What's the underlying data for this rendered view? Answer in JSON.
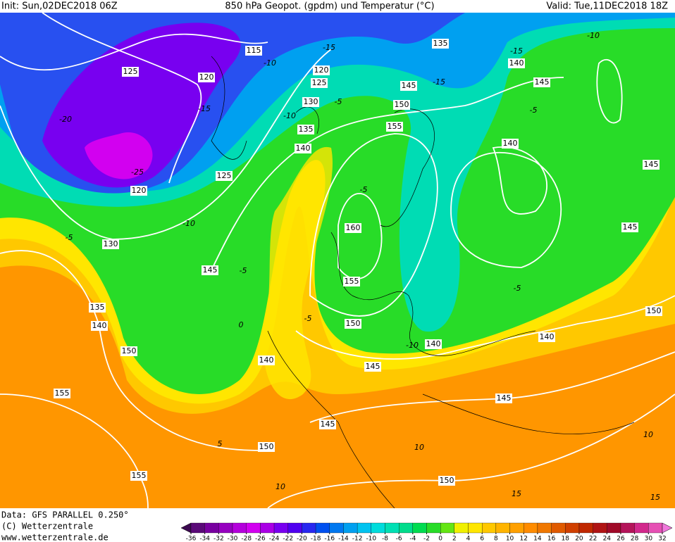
{
  "header": {
    "init": "Init: Sun,02DEC2018 06Z",
    "title": "850 hPa Geopot. (gpdm) und Temperatur (°C)",
    "valid": "Valid: Tue,11DEC2018 18Z"
  },
  "footer": {
    "data": "Data: GFS PARALLEL 0.250°",
    "copyright": "(C) Wetterzentrale",
    "url": "www.wetterzentrale.de"
  },
  "geopotential_labels": [
    "115",
    "120",
    "125",
    "120",
    "125",
    "130",
    "135",
    "140",
    "125",
    "120",
    "130",
    "135",
    "140",
    "150",
    "155",
    "155",
    "150",
    "145",
    "140",
    "145",
    "160",
    "155",
    "150",
    "145",
    "140",
    "150",
    "155",
    "145",
    "135",
    "140",
    "145",
    "140",
    "145",
    "145",
    "150",
    "140",
    "145",
    "150"
  ],
  "temperature_labels": [
    "-20",
    "-25",
    "-15",
    "-10",
    "-15",
    "-10",
    "-5",
    "-5",
    "-10",
    "-5",
    "-5",
    "0",
    "5",
    "10",
    "10",
    "15",
    "10",
    "15",
    "-5",
    "-10",
    "-15",
    "-15",
    "-5",
    "-10",
    "-5"
  ],
  "colorbar": {
    "ticks": [
      -36,
      -34,
      -32,
      -30,
      -28,
      -26,
      -24,
      -22,
      -20,
      -18,
      -16,
      -14,
      -12,
      -10,
      -8,
      -6,
      -4,
      -2,
      0,
      2,
      4,
      6,
      8,
      10,
      12,
      14,
      16,
      18,
      20,
      22,
      24,
      26,
      28,
      30,
      32
    ],
    "colors": [
      "#3c0a50",
      "#5a0a78",
      "#7800a0",
      "#9600c0",
      "#b400dc",
      "#d200f0",
      "#aa00e6",
      "#7800f0",
      "#5000f0",
      "#2828f0",
      "#0050f0",
      "#0078f0",
      "#00a0f0",
      "#00c3f0",
      "#00dcdc",
      "#00e0b4",
      "#00dc8c",
      "#00dc50",
      "#28dc28",
      "#64e614",
      "#f0f000",
      "#ffe600",
      "#ffc800",
      "#ffb400",
      "#ffa000",
      "#ff8c00",
      "#f07800",
      "#e05a00",
      "#d04000",
      "#c02800",
      "#b01414",
      "#a00a28",
      "#b4145a",
      "#d2288c",
      "#e650b4",
      "#f078dc"
    ]
  }
}
